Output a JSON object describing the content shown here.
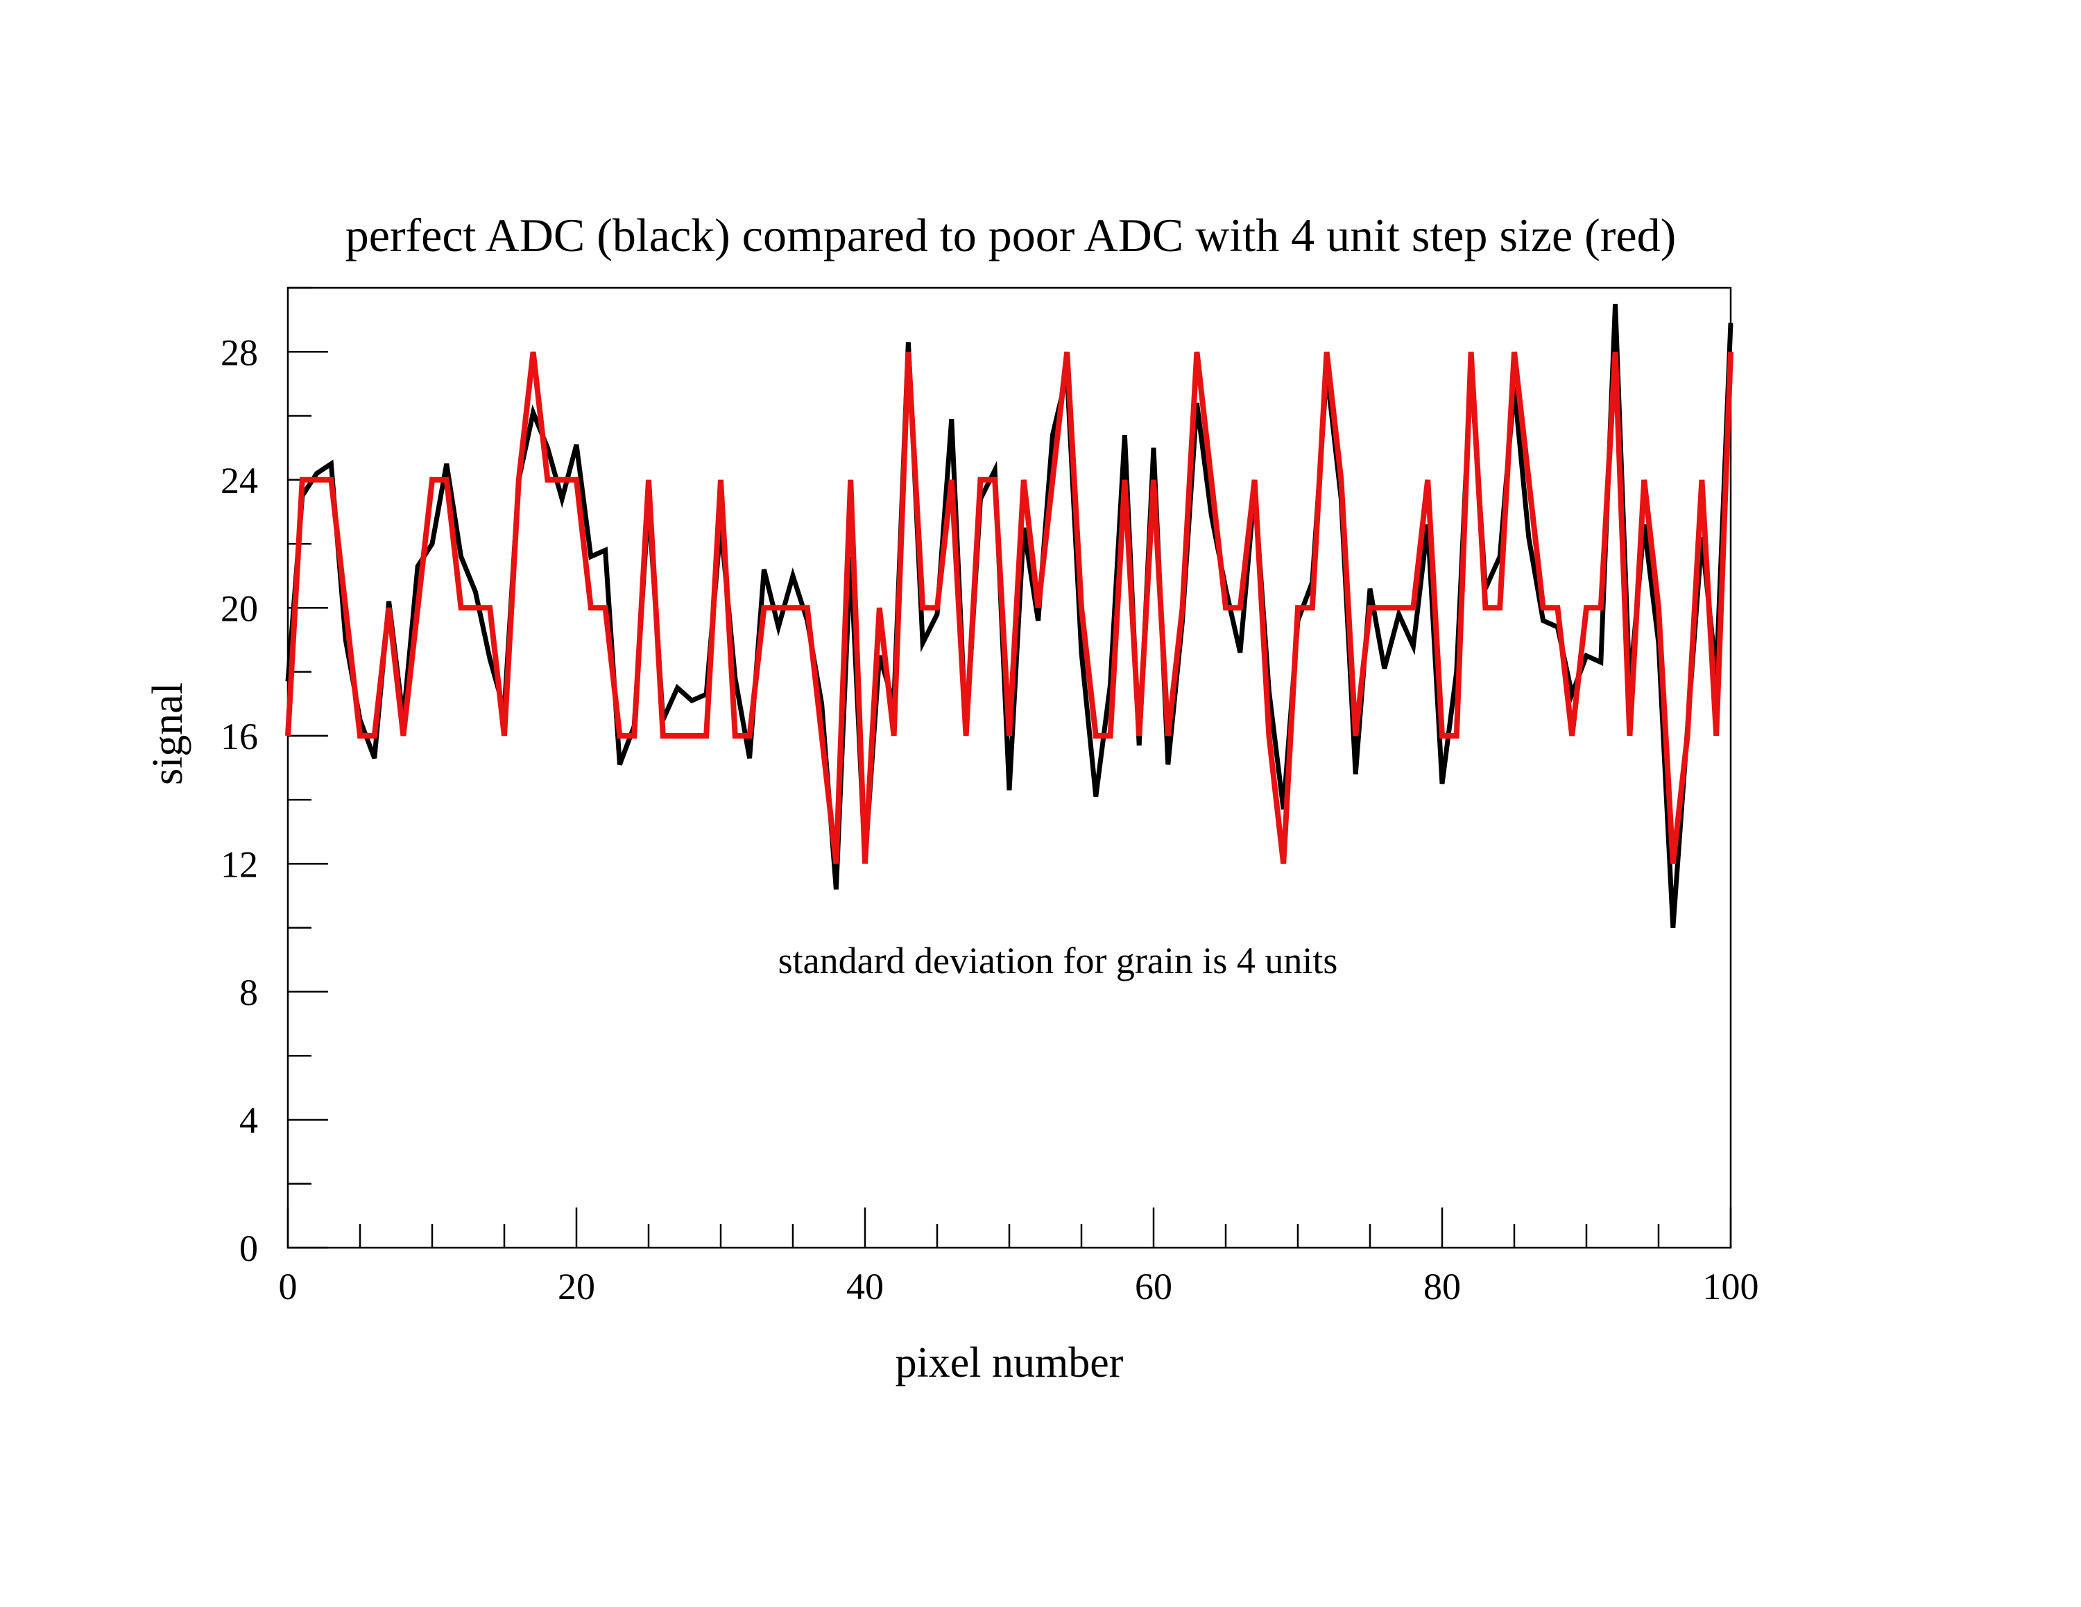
{
  "chart_data": {
    "type": "line",
    "title": "perfect ADC (black) compared to poor ADC with 4 unit step size (red)",
    "xlabel": "pixel number",
    "ylabel": "signal",
    "annotation": "standard deviation for grain is 4 units",
    "xlim": [
      0,
      100
    ],
    "ylim": [
      0,
      30
    ],
    "xticks": [
      0,
      20,
      40,
      60,
      80,
      100
    ],
    "xminor_step": 5,
    "yticks": [
      0,
      4,
      8,
      12,
      16,
      20,
      24,
      28
    ],
    "yminor_step": 2,
    "grid": false,
    "series": [
      {
        "name": "perfect ADC",
        "color": "#000000",
        "x": [
          0,
          1,
          2,
          3,
          4,
          5,
          6,
          7,
          8,
          9,
          10,
          11,
          12,
          13,
          14,
          15,
          16,
          17,
          18,
          19,
          20,
          21,
          22,
          23,
          24,
          25,
          26,
          27,
          28,
          29,
          30,
          31,
          32,
          33,
          34,
          35,
          36,
          37,
          38,
          39,
          40,
          41,
          42,
          43,
          44,
          45,
          46,
          47,
          48,
          49,
          50,
          51,
          52,
          53,
          54,
          55,
          56,
          57,
          58,
          59,
          60,
          61,
          62,
          63,
          64,
          65,
          66,
          67,
          68,
          69,
          70,
          71,
          72,
          73,
          74,
          75,
          76,
          77,
          78,
          79,
          80,
          81,
          82,
          83,
          84,
          85,
          86,
          87,
          88,
          89,
          90,
          91,
          92,
          93,
          94,
          95,
          96,
          97,
          98,
          99,
          100
        ],
        "values": [
          17.7,
          23.5,
          24.2,
          24.5,
          19,
          16.5,
          15.3,
          20.2,
          16.5,
          21.3,
          22,
          24.5,
          21.6,
          20.5,
          18.4,
          16.8,
          24,
          26.1,
          25,
          23.4,
          25.1,
          21.6,
          21.8,
          15.1,
          16.3,
          23.3,
          16.5,
          17.5,
          17.1,
          17.3,
          22.6,
          17.8,
          15.3,
          21.2,
          19.4,
          21,
          19.6,
          17,
          11.2,
          21.6,
          12.1,
          18.5,
          17,
          28.3,
          18.9,
          19.8,
          25.9,
          16,
          23.4,
          24.3,
          14.3,
          22.5,
          19.6,
          25.4,
          27.3,
          18.6,
          14.1,
          17.6,
          25.4,
          15.7,
          25,
          15.1,
          19.6,
          26.4,
          22.9,
          20.6,
          18.6,
          23.7,
          17.4,
          13.7,
          19.6,
          20.8,
          27.4,
          23.4,
          14.8,
          20.6,
          18.1,
          19.8,
          18.8,
          22.6,
          14.5,
          18,
          27.5,
          20.6,
          21.6,
          26.9,
          22.2,
          19.6,
          19.4,
          17.3,
          18.5,
          18.3,
          29.5,
          17.5,
          22.6,
          18.9,
          10,
          16.2,
          22.2,
          17.9,
          28.9
        ]
      },
      {
        "name": "poor ADC (4 unit step)",
        "color": "#e81212",
        "x": [
          0,
          1,
          2,
          3,
          4,
          5,
          6,
          7,
          8,
          9,
          10,
          11,
          12,
          13,
          14,
          15,
          16,
          17,
          18,
          19,
          20,
          21,
          22,
          23,
          24,
          25,
          26,
          27,
          28,
          29,
          30,
          31,
          32,
          33,
          34,
          35,
          36,
          37,
          38,
          39,
          40,
          41,
          42,
          43,
          44,
          45,
          46,
          47,
          48,
          49,
          50,
          51,
          52,
          53,
          54,
          55,
          56,
          57,
          58,
          59,
          60,
          61,
          62,
          63,
          64,
          65,
          66,
          67,
          68,
          69,
          70,
          71,
          72,
          73,
          74,
          75,
          76,
          77,
          78,
          79,
          80,
          81,
          82,
          83,
          84,
          85,
          86,
          87,
          88,
          89,
          90,
          91,
          92,
          93,
          94,
          95,
          96,
          97,
          98,
          99,
          100
        ],
        "values": [
          16,
          24,
          24,
          24,
          20,
          16,
          16,
          20,
          16,
          20,
          24,
          24,
          20,
          20,
          20,
          16,
          24,
          28,
          24,
          24,
          24,
          20,
          20,
          16,
          16,
          24,
          16,
          16,
          16,
          16,
          24,
          16,
          16,
          20,
          20,
          20,
          20,
          16,
          12,
          24,
          12,
          20,
          16,
          28,
          20,
          20,
          24,
          16,
          24,
          24,
          16,
          24,
          20,
          24,
          28,
          20,
          16,
          16,
          24,
          16,
          24,
          16,
          20,
          28,
          24,
          20,
          20,
          24,
          16,
          12,
          20,
          20,
          28,
          24,
          16,
          20,
          20,
          20,
          20,
          24,
          16,
          16,
          28,
          20,
          20,
          28,
          24,
          20,
          20,
          16,
          20,
          20,
          28,
          16,
          24,
          20,
          12,
          16,
          24,
          16,
          28
        ]
      }
    ]
  }
}
